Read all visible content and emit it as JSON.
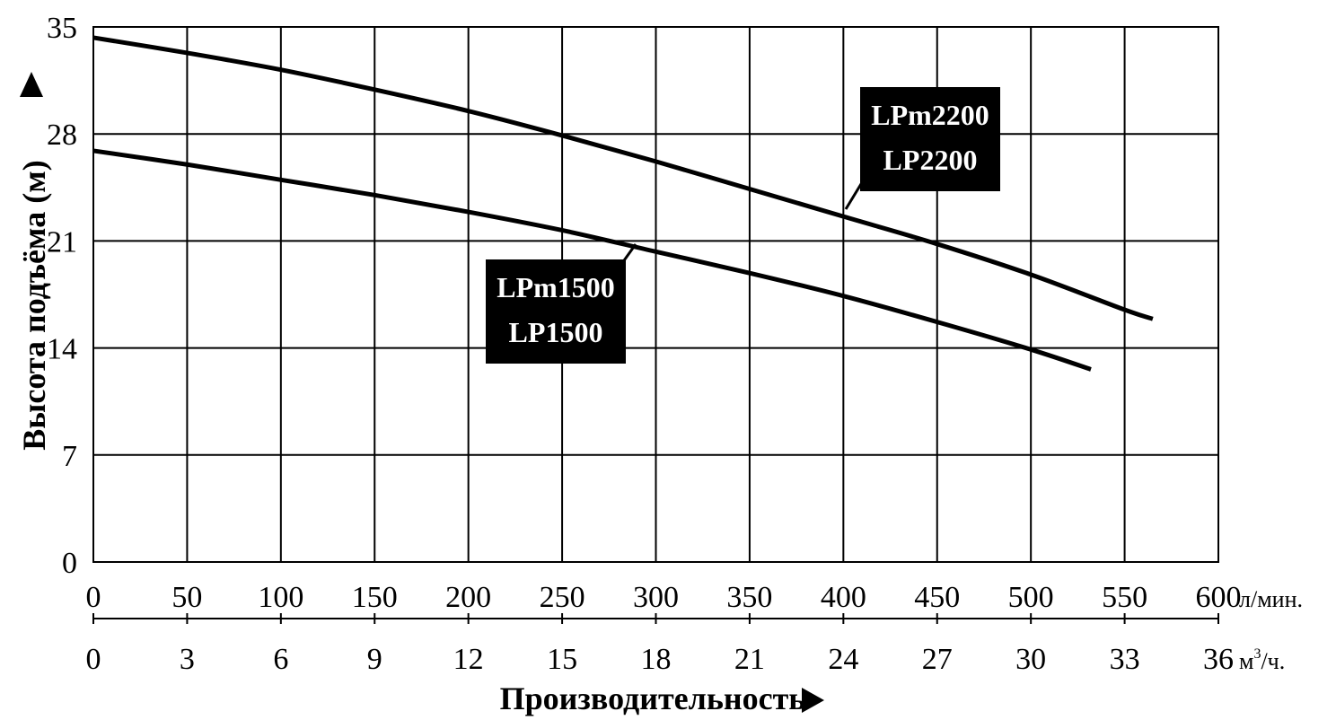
{
  "chart_data": {
    "type": "line",
    "title": "",
    "ylabel": "Высота подъёма (м)",
    "xlabel": "Производительность",
    "y_axis": {
      "ticks": [
        0,
        7,
        14,
        21,
        28,
        35
      ],
      "range": [
        0,
        35
      ]
    },
    "x_axis_lmin": {
      "ticks": [
        0,
        50,
        100,
        150,
        200,
        250,
        300,
        350,
        400,
        450,
        500,
        550,
        600
      ],
      "unit": "л/мин.",
      "range": [
        0,
        600
      ]
    },
    "x_axis_m3h": {
      "ticks": [
        0,
        3,
        6,
        9,
        12,
        15,
        18,
        21,
        24,
        27,
        30,
        33,
        36
      ],
      "unit_base": "м",
      "unit_sup": "3",
      "unit_tail": "/ч."
    },
    "grid": true,
    "series": [
      {
        "name_lines": [
          "LPm2200",
          "LP2200"
        ],
        "x": [
          0,
          50,
          100,
          150,
          200,
          250,
          300,
          350,
          400,
          450,
          500,
          550,
          565
        ],
        "y": [
          34.3,
          33.3,
          32.2,
          30.9,
          29.5,
          27.9,
          26.2,
          24.4,
          22.6,
          20.8,
          18.8,
          16.5,
          15.9
        ]
      },
      {
        "name_lines": [
          "LPm1500",
          "LP1500"
        ],
        "x": [
          0,
          50,
          100,
          150,
          200,
          250,
          300,
          350,
          400,
          450,
          500,
          532
        ],
        "y": [
          26.9,
          26.0,
          25.0,
          24.0,
          22.9,
          21.7,
          20.3,
          18.9,
          17.4,
          15.7,
          13.9,
          12.6
        ]
      }
    ]
  }
}
